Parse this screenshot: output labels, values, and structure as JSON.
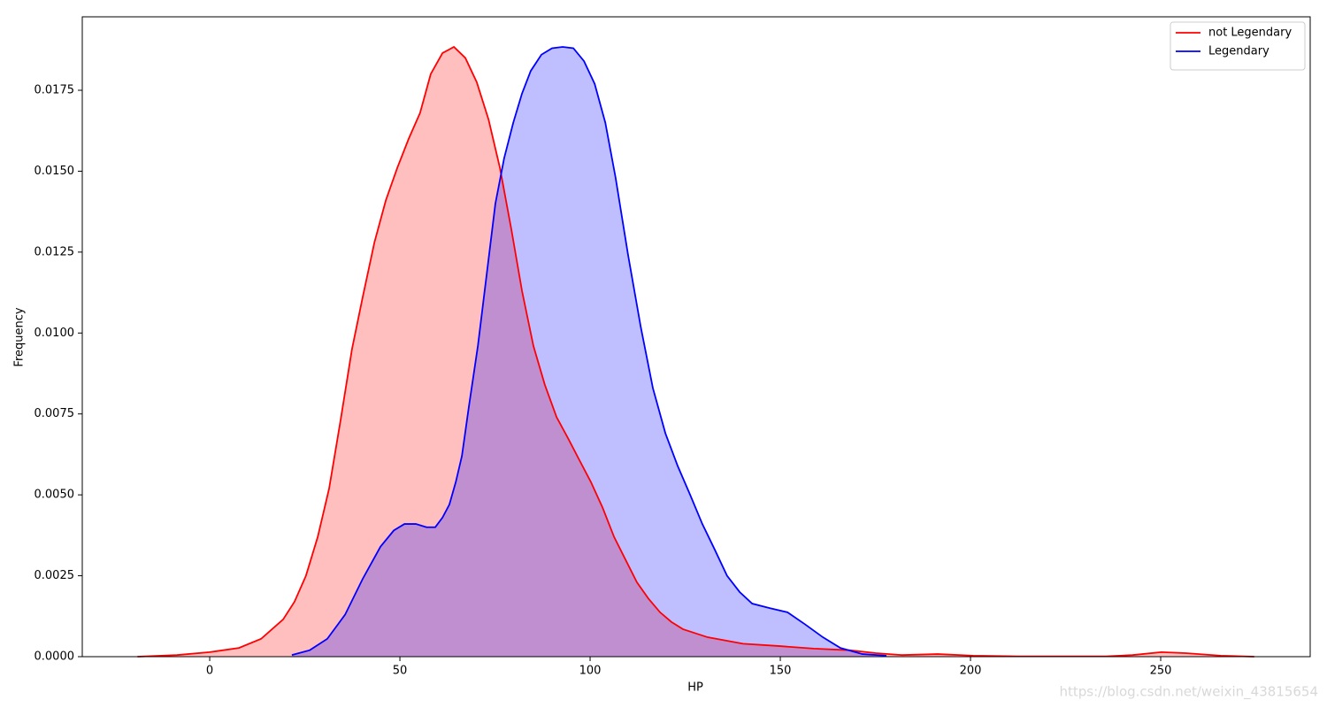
{
  "chart_data": {
    "type": "kde",
    "x_label": "HP",
    "y_label": "Frequency",
    "watermark": "https://blog.csdn.net/weixin_43815654",
    "xlim": [
      -33.5,
      289.3
    ],
    "ylim": [
      0,
      0.01977
    ],
    "xticks": [
      0,
      50,
      100,
      150,
      200,
      250
    ],
    "yticks": [
      {
        "value": 0,
        "label": "0.0000"
      },
      {
        "value": 0.0025,
        "label": "0.0025"
      },
      {
        "value": 0.005,
        "label": "0.0050"
      },
      {
        "value": 0.0075,
        "label": "0.0075"
      },
      {
        "value": 0.01,
        "label": "0.0100"
      },
      {
        "value": 0.0125,
        "label": "0.0125"
      },
      {
        "value": 0.015,
        "label": "0.0150"
      },
      {
        "value": 0.0175,
        "label": "0.0175"
      }
    ],
    "legend": "upper right",
    "fill_opacity": 0.25,
    "series": [
      {
        "name": "not Legendary",
        "color": "#ff0000",
        "x": [
          -19,
          -8.6,
          0,
          7.7,
          13.5,
          19.3,
          22.3,
          25.3,
          28.4,
          31.4,
          34.4,
          37.4,
          40.2,
          43.3,
          46.3,
          49.3,
          52.3,
          55.3,
          58.1,
          61.2,
          64.2,
          67.2,
          70.2,
          73.3,
          76.3,
          79.3,
          82.1,
          85.1,
          88.1,
          91.2,
          94.2,
          97.2,
          100.2,
          103.3,
          106.3,
          109.3,
          112.3,
          115.3,
          118.4,
          121.4,
          124.4,
          130.9,
          140.2,
          149.5,
          158.8,
          168.1,
          175.1,
          182,
          191.4,
          200.7,
          212.3,
          235.6,
          242.6,
          250.2,
          256.5,
          265.8,
          274.6
        ],
        "values": [
          0,
          5e-05,
          0.00014,
          0.00027,
          0.00055,
          0.00115,
          0.0017,
          0.0025,
          0.0037,
          0.0052,
          0.0073,
          0.0095,
          0.0111,
          0.0128,
          0.0141,
          0.0151,
          0.016,
          0.0168,
          0.018,
          0.01865,
          0.01884,
          0.0185,
          0.01775,
          0.0166,
          0.0151,
          0.0132,
          0.0113,
          0.0096,
          0.0084,
          0.0074,
          0.00675,
          0.00607,
          0.0054,
          0.0046,
          0.0037,
          0.003,
          0.0023,
          0.0018,
          0.00137,
          0.00107,
          0.00085,
          0.0006,
          0.0004,
          0.00033,
          0.00025,
          0.0002,
          0.00011,
          5e-05,
          8e-05,
          3e-05,
          1e-05,
          1e-05,
          5e-05,
          0.00014,
          0.00011,
          3e-05,
          0
        ]
      },
      {
        "name": "Legendary",
        "color": "#0000ff",
        "x": [
          21.6,
          26.3,
          30.9,
          35.6,
          40.2,
          44.9,
          48.4,
          51.2,
          54.2,
          57.0,
          59.3,
          61.2,
          63.0,
          64.7,
          66.3,
          68.1,
          70.5,
          72.8,
          75.1,
          77.4,
          79.8,
          82.1,
          84.4,
          87.2,
          90.0,
          92.8,
          95.6,
          98.4,
          101.2,
          104.0,
          106.7,
          110.0,
          113.3,
          116.5,
          119.8,
          123.0,
          126.3,
          129.5,
          132.8,
          136.0,
          139.3,
          142.6,
          147.2,
          151.9,
          156.5,
          161.2,
          165.8,
          171.6,
          177.9
        ],
        "values": [
          5e-05,
          0.0002,
          0.00055,
          0.0013,
          0.0024,
          0.0034,
          0.0039,
          0.0041,
          0.0041,
          0.004,
          0.004,
          0.0043,
          0.0047,
          0.0054,
          0.0062,
          0.0077,
          0.0096,
          0.0118,
          0.014,
          0.0154,
          0.0165,
          0.0174,
          0.0181,
          0.0186,
          0.0188,
          0.01884,
          0.0188,
          0.0184,
          0.0177,
          0.0165,
          0.0148,
          0.0124,
          0.0102,
          0.0083,
          0.0069,
          0.0059,
          0.005,
          0.0041,
          0.0033,
          0.0025,
          0.002,
          0.00164,
          0.0015,
          0.00137,
          0.001,
          0.0006,
          0.00027,
          8e-05,
          3e-05
        ]
      }
    ]
  }
}
